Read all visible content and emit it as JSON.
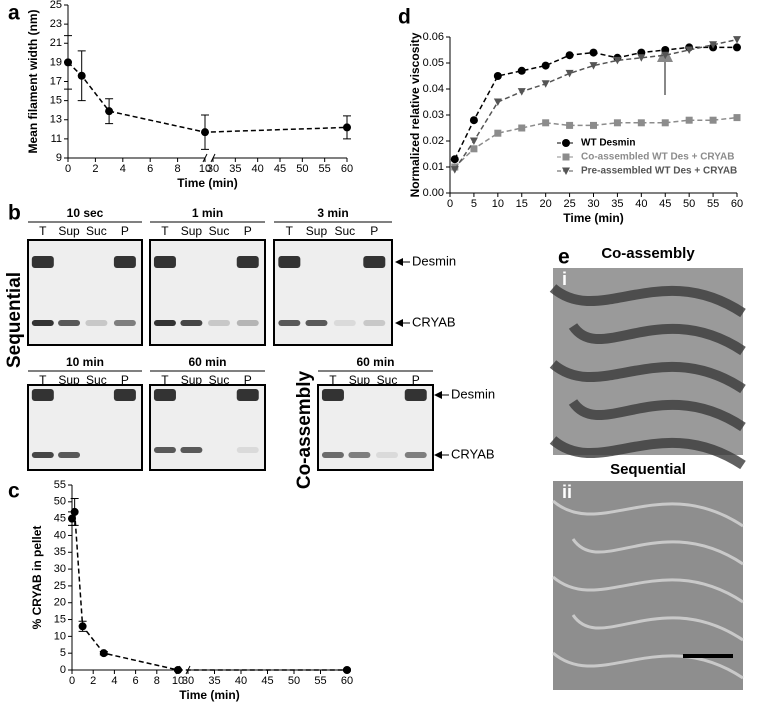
{
  "panel_labels": [
    "a",
    "b",
    "c",
    "d",
    "e"
  ],
  "chart_data": [
    {
      "type": "line",
      "xlabel": "Time (min)",
      "ylabel": "Mean filament width (nm)",
      "x": [
        0,
        1,
        3,
        10,
        60
      ],
      "series": [
        {
          "color": "#000000",
          "marker": "circle",
          "values": [
            19,
            17.6,
            13.9,
            11.7,
            12.2
          ],
          "errors": [
            2.8,
            2.6,
            1.3,
            1.8,
            1.2
          ]
        }
      ],
      "xlim": [
        0,
        60
      ],
      "xbreak": [
        10,
        30
      ],
      "xticks": [
        0,
        2,
        4,
        6,
        8,
        10,
        30,
        35,
        40,
        45,
        50,
        55,
        60
      ],
      "ylim": [
        9,
        25
      ],
      "yticks": [
        9,
        11,
        13,
        15,
        17,
        19,
        21,
        23,
        25
      ]
    },
    {
      "type": "line",
      "xlabel": "Time (min)",
      "ylabel": "% CRYAB in pellet",
      "x": [
        0,
        0.25,
        1,
        3,
        10,
        60
      ],
      "series": [
        {
          "color": "#000000",
          "marker": "circle",
          "values": [
            45,
            47,
            13,
            5,
            0,
            0
          ],
          "errors": [
            2,
            4,
            1.5,
            0.5,
            0.3,
            0.3
          ]
        }
      ],
      "xlim": [
        0,
        60
      ],
      "xbreak": [
        10,
        30
      ],
      "xticks": [
        0,
        2,
        4,
        6,
        8,
        10,
        30,
        35,
        40,
        45,
        50,
        55,
        60
      ],
      "ylim": [
        0,
        55
      ],
      "yticks": [
        0,
        5,
        10,
        15,
        20,
        25,
        30,
        35,
        40,
        45,
        50,
        55
      ]
    },
    {
      "type": "line",
      "xlabel": "Time (min)",
      "ylabel": "Normalized relative viscosity",
      "x": [
        1,
        5,
        10,
        15,
        20,
        25,
        30,
        35,
        40,
        45,
        50,
        55,
        60
      ],
      "series": [
        {
          "name": "WT Desmin",
          "color": "#000000",
          "marker": "circle",
          "values": [
            0.013,
            0.028,
            0.045,
            0.047,
            0.049,
            0.053,
            0.054,
            0.052,
            0.054,
            0.055,
            0.056,
            0.056,
            0.056
          ]
        },
        {
          "name": "Co-assembled WT Des + CRYAB",
          "color": "#8c8c8c",
          "marker": "square",
          "values": [
            0.01,
            0.017,
            0.023,
            0.025,
            0.027,
            0.026,
            0.026,
            0.027,
            0.027,
            0.027,
            0.028,
            0.028,
            0.029
          ]
        },
        {
          "name": "Pre-assembled WT Des + CRYAB",
          "color": "#555555",
          "marker": "triangle-down",
          "values": [
            0.009,
            0.02,
            0.035,
            0.039,
            0.042,
            0.046,
            0.049,
            0.051,
            0.052,
            0.053,
            0.055,
            0.057,
            0.059
          ]
        }
      ],
      "xlim": [
        0,
        60
      ],
      "xticks": [
        0,
        5,
        10,
        15,
        20,
        25,
        30,
        35,
        40,
        45,
        50,
        55,
        60
      ],
      "ylim": [
        0,
        0.06
      ],
      "yticks": [
        {
          "value": 0,
          "label": "0.00"
        },
        0.01,
        0.02,
        0.03,
        0.04,
        0.05,
        0.06
      ],
      "legend": "lower right"
    }
  ],
  "gels": {
    "groups": [
      "Sequential",
      "Co-assembly"
    ],
    "lanes": [
      "T",
      "Sup",
      "Suc",
      "P"
    ],
    "markers": [
      "Desmin",
      "CRYAB"
    ],
    "blots": [
      "10 sec",
      "1 min",
      "3 min",
      "10 min",
      "60 min",
      "60 min"
    ]
  },
  "micrographs": [
    {
      "title": "Co-assembly",
      "label": "i"
    },
    {
      "title": "Sequential",
      "label": "ii"
    }
  ]
}
